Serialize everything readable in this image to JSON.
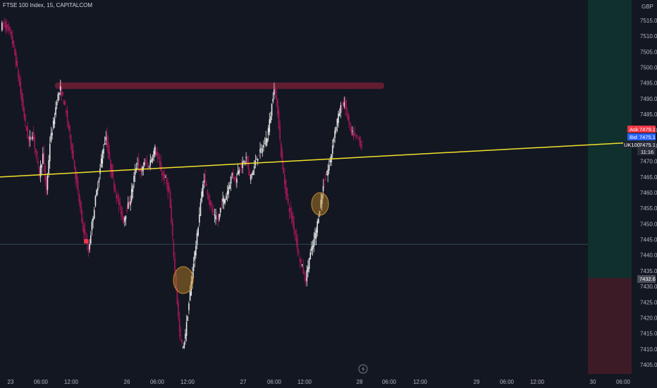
{
  "header": {
    "title": "FTSE 100 Index, 15, CAPITALCOM"
  },
  "axis": {
    "currency": "GBP",
    "y_ticks": [
      7515,
      7510,
      7505,
      7500,
      7495,
      7490,
      7485,
      7480,
      7475,
      7470,
      7465,
      7460,
      7455,
      7450,
      7445,
      7440,
      7435,
      7430,
      7425,
      7420,
      7415,
      7410,
      7405
    ],
    "x_ticks": [
      "23",
      "06:00",
      "12:00",
      "26",
      "06:00",
      "12:00",
      "27",
      "06:00",
      "12:00",
      "28",
      "06:00",
      "12:00",
      "29",
      "06:00",
      "12:00",
      "30",
      "06:00"
    ]
  },
  "price_tags": {
    "ask": {
      "label": "Ask",
      "value": "7479.1",
      "color": "#f23645"
    },
    "bid": {
      "label": "Bid",
      "value": "7475.1",
      "color": "#2962ff"
    },
    "symbol": {
      "label": "UK100",
      "value": "7475.1",
      "countdown": "11:16"
    },
    "position": {
      "value": "7432.6"
    }
  },
  "colors": {
    "background": "#131722",
    "up_candle": "#e6e6e6",
    "down_candle": "#a8165a",
    "trendline": "#f2e12a",
    "resistance_zone": "#6b1e33",
    "highlight_circle": "#c68a2b",
    "profit_zone": "#10302d",
    "loss_zone": "#3d1b26"
  },
  "annotations": {
    "trendline_start_price": 7465,
    "trendline_end_price": 7476,
    "resistance_zone_from": 7493.1,
    "resistance_zone_to": 7495.2,
    "support_price": 7443.5
  },
  "chart_data": {
    "type": "candlestick",
    "symbol": "FTSE 100 Index",
    "interval": "15",
    "source": "CAPITALCOM",
    "ylim": [
      7402,
      7520
    ],
    "path": [
      7513,
      7514,
      7512,
      7510,
      7504,
      7497,
      7489,
      7482,
      7476,
      7479,
      7473,
      7466,
      7472,
      7460,
      7476,
      7482,
      7490,
      7493,
      7489,
      7483,
      7476,
      7468,
      7460,
      7452,
      7446,
      7441,
      7450,
      7458,
      7465,
      7473,
      7478,
      7470,
      7464,
      7459,
      7455,
      7451,
      7455,
      7458,
      7465,
      7470,
      7466,
      7470,
      7468,
      7471,
      7474,
      7470,
      7466,
      7464,
      7460,
      7445,
      7430,
      7415,
      7410,
      7418,
      7428,
      7438,
      7446,
      7457,
      7465,
      7460,
      7455,
      7452,
      7451,
      7457,
      7458,
      7462,
      7466,
      7464,
      7468,
      7469,
      7471,
      7465,
      7467,
      7471,
      7473,
      7475,
      7478,
      7485,
      7494,
      7486,
      7472,
      7463,
      7456,
      7452,
      7447,
      7440,
      7436,
      7432,
      7439,
      7443,
      7448,
      7455,
      7462,
      7466,
      7470,
      7478,
      7483,
      7487,
      7489,
      7484,
      7479,
      7478,
      7477,
      7475
    ]
  }
}
